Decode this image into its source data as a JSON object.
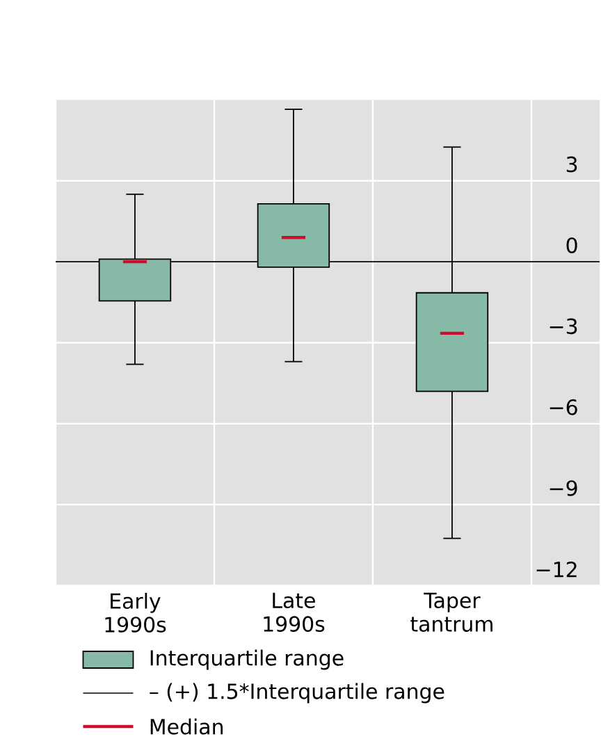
{
  "chart_data": {
    "type": "box",
    "categories": [
      "Early 1990s",
      "Late 1990s",
      "Taper tantrum"
    ],
    "series": [
      {
        "name": "Interquartile range",
        "color": "#87b9a7",
        "boxes": [
          {
            "low": -3.8,
            "q1": -1.45,
            "median": 0,
            "q3": 0.1,
            "high": 2.5
          },
          {
            "low": -3.7,
            "q1": -0.2,
            "median": 0.9,
            "q3": 2.15,
            "high": 5.65
          },
          {
            "low": -10.25,
            "q1": -4.8,
            "median": -2.65,
            "q3": -1.15,
            "high": 4.25
          }
        ]
      }
    ],
    "ylim": [
      -12,
      6
    ],
    "yticks": [
      3,
      0,
      {
        "value": -3,
        "label": "−3"
      },
      {
        "value": -6,
        "label": "−6"
      },
      {
        "value": -9,
        "label": "−9"
      },
      {
        "value": -12,
        "label": "−12"
      }
    ],
    "grid": true,
    "legend": "bottom",
    "ref_lines": [
      {
        "axis": "y",
        "value": 0,
        "color": "#000000"
      }
    ],
    "annotations": [
      "– (+) 1.5*Interquartile range",
      "Median"
    ]
  }
}
